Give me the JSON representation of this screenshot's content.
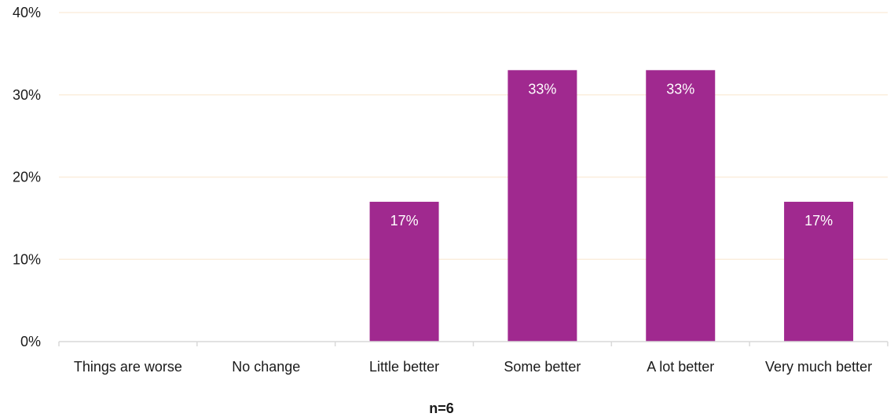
{
  "chart_data": {
    "type": "bar",
    "categories": [
      "Things are worse",
      "No change",
      "Little better",
      "Some better",
      "A lot better",
      "Very much better"
    ],
    "values": [
      0,
      0,
      17,
      33,
      33,
      17
    ],
    "data_labels": [
      "",
      "",
      "17%",
      "33%",
      "33%",
      "17%"
    ],
    "ylim": [
      0,
      40
    ],
    "yticks": [
      0,
      10,
      20,
      30,
      40
    ],
    "ytick_labels": [
      "0%",
      "10%",
      "20%",
      "30%",
      "40%"
    ],
    "title": "",
    "xlabel": "",
    "ylabel": "",
    "note": "n=6",
    "grid": true,
    "bar_color": "#A0298F",
    "grid_color": "#FBEEDD"
  }
}
